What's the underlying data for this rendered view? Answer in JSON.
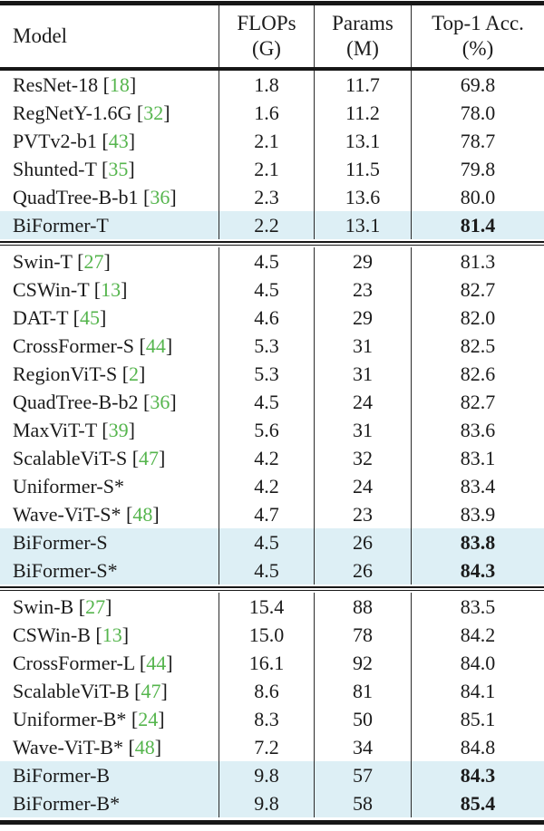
{
  "table": {
    "colors": {
      "citation_green": "#55b54d",
      "highlight_row": "#ddeff5",
      "rule_black": "#171717",
      "text": "#1b1b1b"
    },
    "header": {
      "model": "Model",
      "flops_top": "FLOPs",
      "flops_bottom": "(G)",
      "params_top": "Params",
      "params_bottom": "(M)",
      "acc_top": "Top-1 Acc.",
      "acc_bottom": "(%)"
    },
    "groups": [
      {
        "rows": [
          {
            "model": "ResNet-18",
            "cite": "18",
            "flops": "1.8",
            "params": "11.7",
            "acc": "69.8",
            "highlight": false,
            "bold_acc": false
          },
          {
            "model": "RegNetY-1.6G",
            "cite": "32",
            "flops": "1.6",
            "params": "11.2",
            "acc": "78.0",
            "highlight": false,
            "bold_acc": false
          },
          {
            "model": "PVTv2-b1",
            "cite": "43",
            "flops": "2.1",
            "params": "13.1",
            "acc": "78.7",
            "highlight": false,
            "bold_acc": false
          },
          {
            "model": "Shunted-T",
            "cite": "35",
            "flops": "2.1",
            "params": "11.5",
            "acc": "79.8",
            "highlight": false,
            "bold_acc": false
          },
          {
            "model": "QuadTree-B-b1",
            "cite": "36",
            "flops": "2.3",
            "params": "13.6",
            "acc": "80.0",
            "highlight": false,
            "bold_acc": false
          },
          {
            "model": "BiFormer-T",
            "cite": "",
            "flops": "2.2",
            "params": "13.1",
            "acc": "81.4",
            "highlight": true,
            "bold_acc": true
          }
        ]
      },
      {
        "rows": [
          {
            "model": "Swin-T",
            "cite": "27",
            "flops": "4.5",
            "params": "29",
            "acc": "81.3",
            "highlight": false,
            "bold_acc": false
          },
          {
            "model": "CSWin-T",
            "cite": "13",
            "flops": "4.5",
            "params": "23",
            "acc": "82.7",
            "highlight": false,
            "bold_acc": false
          },
          {
            "model": "DAT-T",
            "cite": "45",
            "flops": "4.6",
            "params": "29",
            "acc": "82.0",
            "highlight": false,
            "bold_acc": false
          },
          {
            "model": "CrossFormer-S",
            "cite": "44",
            "flops": "5.3",
            "params": "31",
            "acc": "82.5",
            "highlight": false,
            "bold_acc": false
          },
          {
            "model": "RegionViT-S",
            "cite": "2",
            "flops": "5.3",
            "params": "31",
            "acc": "82.6",
            "highlight": false,
            "bold_acc": false
          },
          {
            "model": "QuadTree-B-b2",
            "cite": "36",
            "flops": "4.5",
            "params": "24",
            "acc": "82.7",
            "highlight": false,
            "bold_acc": false
          },
          {
            "model": "MaxViT-T",
            "cite": "39",
            "flops": "5.6",
            "params": "31",
            "acc": "83.6",
            "highlight": false,
            "bold_acc": false
          },
          {
            "model": "ScalableViT-S",
            "cite": "47",
            "flops": "4.2",
            "params": "32",
            "acc": "83.1",
            "highlight": false,
            "bold_acc": false
          },
          {
            "model": "Uniformer-S*",
            "cite": "",
            "flops": "4.2",
            "params": "24",
            "acc": "83.4",
            "highlight": false,
            "bold_acc": false
          },
          {
            "model": "Wave-ViT-S*",
            "cite": "48",
            "flops": "4.7",
            "params": "23",
            "acc": "83.9",
            "highlight": false,
            "bold_acc": false
          },
          {
            "model": "BiFormer-S",
            "cite": "",
            "flops": "4.5",
            "params": "26",
            "acc": "83.8",
            "highlight": true,
            "bold_acc": true
          },
          {
            "model": "BiFormer-S*",
            "cite": "",
            "flops": "4.5",
            "params": "26",
            "acc": "84.3",
            "highlight": true,
            "bold_acc": true
          }
        ]
      },
      {
        "rows": [
          {
            "model": "Swin-B",
            "cite": "27",
            "flops": "15.4",
            "params": "88",
            "acc": "83.5",
            "highlight": false,
            "bold_acc": false
          },
          {
            "model": "CSWin-B",
            "cite": "13",
            "flops": "15.0",
            "params": "78",
            "acc": "84.2",
            "highlight": false,
            "bold_acc": false
          },
          {
            "model": "CrossFormer-L",
            "cite": "44",
            "flops": "16.1",
            "params": "92",
            "acc": "84.0",
            "highlight": false,
            "bold_acc": false
          },
          {
            "model": "ScalableViT-B",
            "cite": "47",
            "flops": "8.6",
            "params": "81",
            "acc": "84.1",
            "highlight": false,
            "bold_acc": false
          },
          {
            "model": "Uniformer-B*",
            "cite": "24",
            "flops": "8.3",
            "params": "50",
            "acc": "85.1",
            "highlight": false,
            "bold_acc": false
          },
          {
            "model": "Wave-ViT-B*",
            "cite": "48",
            "flops": "7.2",
            "params": "34",
            "acc": "84.8",
            "highlight": false,
            "bold_acc": false
          },
          {
            "model": "BiFormer-B",
            "cite": "",
            "flops": "9.8",
            "params": "57",
            "acc": "84.3",
            "highlight": true,
            "bold_acc": true
          },
          {
            "model": "BiFormer-B*",
            "cite": "",
            "flops": "9.8",
            "params": "58",
            "acc": "85.4",
            "highlight": true,
            "bold_acc": true
          }
        ]
      }
    ]
  }
}
